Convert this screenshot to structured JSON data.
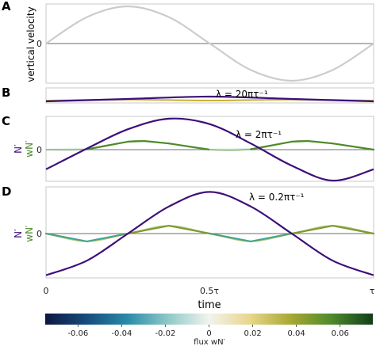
{
  "chart_data": [
    {
      "type": "line",
      "panel": "A",
      "ylabel": "vertical velocity",
      "yticks": [
        "0"
      ],
      "series": [
        {
          "label": "vertical velocity",
          "color": "#cccccc",
          "x": [
            0,
            0.125,
            0.25,
            0.375,
            0.5,
            0.625,
            0.75,
            0.875,
            1
          ],
          "y": [
            0,
            0.71,
            1,
            0.71,
            0,
            -0.71,
            -1,
            -0.71,
            0
          ]
        }
      ]
    },
    {
      "type": "line",
      "panel": "B",
      "annotation": "λ = 20πτ⁻¹",
      "series": [
        {
          "label": "N′",
          "color": "#3d0f7a",
          "x": [
            0,
            0.25,
            0.5,
            0.75,
            1
          ],
          "y": [
            -0.05,
            0,
            0.05,
            0,
            -0.05
          ]
        },
        {
          "label": "wN′",
          "color": "#c8b03a",
          "x": [
            0,
            0.25,
            0.5,
            0.75,
            1
          ],
          "y": [
            0,
            0.002,
            0,
            0.002,
            0
          ]
        }
      ]
    },
    {
      "type": "line",
      "panel": "C",
      "annotation": "λ = 2πτ⁻¹",
      "yticks": [
        "0"
      ],
      "series": [
        {
          "label": "N′",
          "color": "#3d0f7a",
          "x": [
            0,
            0.125,
            0.25,
            0.375,
            0.5,
            0.625,
            0.75,
            0.875,
            1
          ],
          "y": [
            -0.54,
            0.03,
            0.56,
            0.85,
            0.7,
            0.17,
            -0.44,
            -0.85,
            -0.54
          ]
        },
        {
          "label": "wN′",
          "color": "#4f8a2c",
          "x": [
            0,
            0.125,
            0.25,
            0.3,
            0.375,
            0.5,
            0.625,
            0.75,
            0.8,
            0.875,
            1
          ],
          "y": [
            0,
            0.02,
            0.39,
            0.42,
            0.3,
            0,
            0.02,
            0.39,
            0.42,
            0.3,
            0
          ]
        }
      ]
    },
    {
      "type": "line",
      "panel": "D",
      "annotation": "λ = 0.2πτ⁻¹",
      "yticks": [
        "0"
      ],
      "series": [
        {
          "label": "N′",
          "color": "#3d0f7a",
          "x": [
            0,
            0.125,
            0.25,
            0.375,
            0.5,
            0.625,
            0.75,
            0.875,
            1
          ],
          "y": [
            -0.94,
            -0.61,
            0,
            0.61,
            0.94,
            0.61,
            0,
            -0.61,
            -0.94
          ]
        },
        {
          "label": "wN′",
          "color": "#3aa6a0",
          "x": [
            0,
            0.125,
            0.25,
            0.375,
            0.5,
            0.625,
            0.75,
            0.875,
            1
          ],
          "y": [
            0,
            -0.11,
            0,
            0.11,
            0,
            -0.11,
            0,
            0.11,
            0
          ]
        }
      ]
    }
  ],
  "ylabels": {
    "N": "N′",
    "wN": "wN′"
  },
  "xaxis": {
    "label": "time",
    "ticks": [
      "0",
      "0.5τ",
      "τ"
    ],
    "range": [
      0,
      1
    ]
  },
  "colorbar": {
    "label": "flux wN′",
    "ticks": [
      "-0.06",
      "-0.04",
      "-0.02",
      "0",
      "0.02",
      "0.04",
      "0.06"
    ],
    "range": [
      -0.075,
      0.075
    ],
    "stops": [
      "#0d1641",
      "#174b7c",
      "#2a8aa8",
      "#8ec9c7",
      "#f3f3ef",
      "#e8d68b",
      "#a7a833",
      "#4d8a2c",
      "#123d1b"
    ]
  },
  "colors": {
    "N": "#3d0f7a",
    "velocity": "#cccccc",
    "zero_line": "#8a8a8a",
    "frame": "#c9c9c9"
  }
}
